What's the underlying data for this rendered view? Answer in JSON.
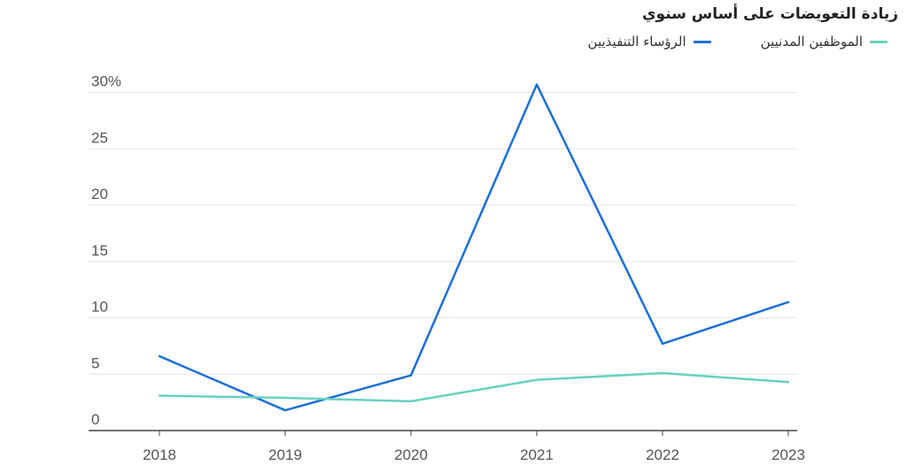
{
  "title": "زيادة التعويضات على أساس سنوي",
  "colors": {
    "executives": "#1a6fd8",
    "civil_servants": "#67d1c0",
    "grid": "#e6e6e6",
    "axis": "#444444"
  },
  "legend": {
    "civil_servants_label": "الموظفين المدنيين",
    "executives_label": "الرؤساء التنفيذيين"
  },
  "chart_data": {
    "type": "line",
    "title": "زيادة التعويضات على أساس سنوي",
    "x": [
      "2018",
      "2019",
      "2020",
      "2021",
      "2022",
      "2023"
    ],
    "y_ticks": [
      "0",
      "5",
      "10",
      "15",
      "20",
      "25",
      "30%"
    ],
    "y_tick_values": [
      0,
      5,
      10,
      15,
      20,
      25,
      30
    ],
    "ylim": [
      0,
      30
    ],
    "grid": true,
    "legend_position": "top-right",
    "series": [
      {
        "name": "الرؤساء التنفيذيين",
        "color": "#1a6fd8",
        "values": [
          6.6,
          1.8,
          4.9,
          30.7,
          7.7,
          11.4
        ]
      },
      {
        "name": "الموظفين المدنيين",
        "color": "#67d1c0",
        "values": [
          3.1,
          2.9,
          2.6,
          4.5,
          5.1,
          4.3
        ]
      }
    ]
  }
}
